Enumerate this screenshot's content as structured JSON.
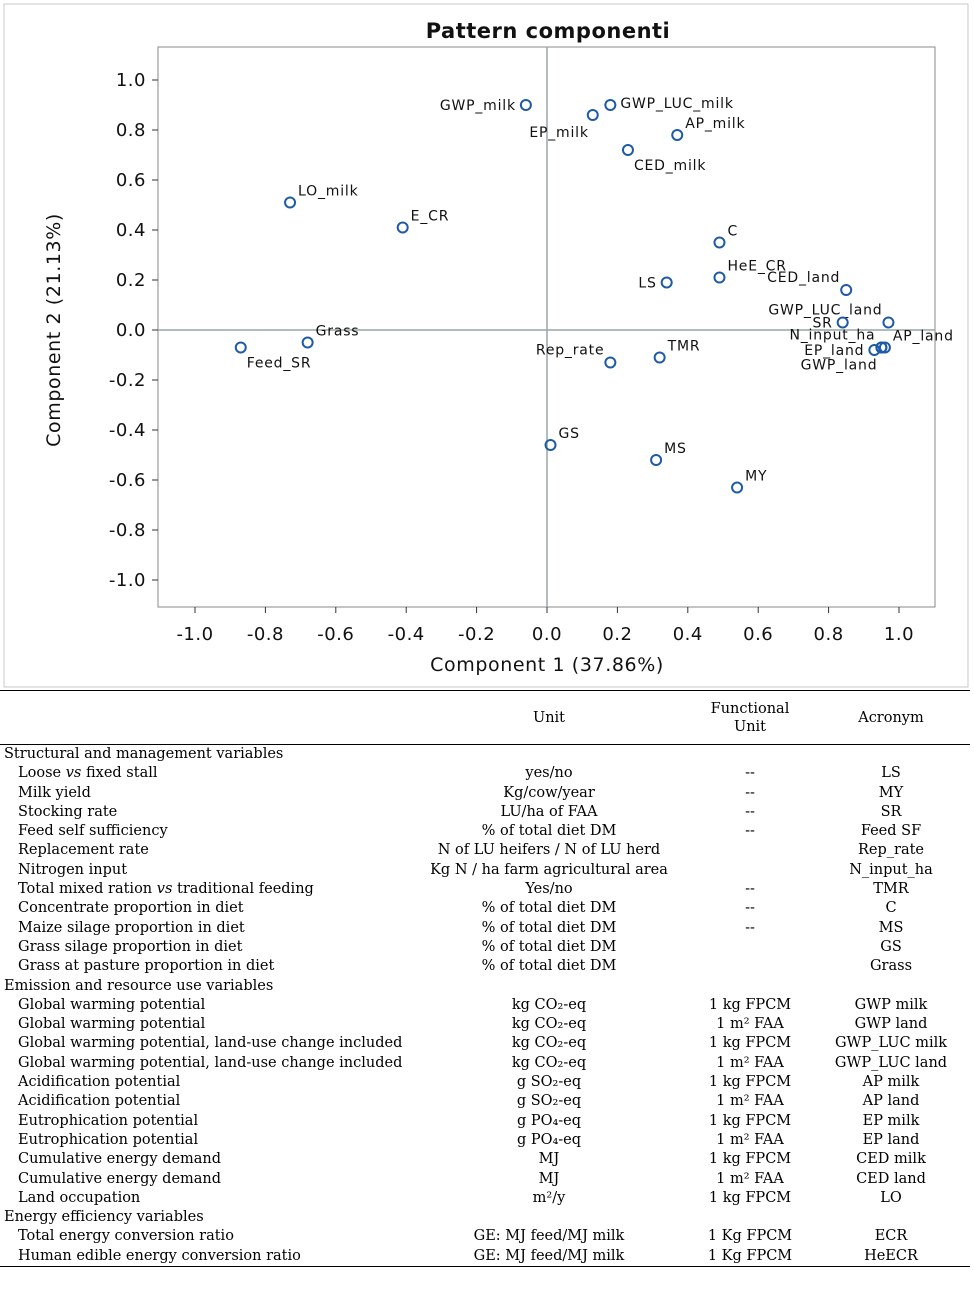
{
  "chart_data": {
    "type": "scatter",
    "title": "Pattern componenti",
    "xlabel": "Component   1 (37.86%)",
    "ylabel": "Component   2 (21.13%)",
    "xlim": [
      -1.1,
      1.1
    ],
    "ylim": [
      -1.1,
      1.1
    ],
    "xticks": [
      "-1.0",
      "-0.8",
      "-0.6",
      "-0.4",
      "-0.2",
      "0.0",
      "0.2",
      "0.4",
      "0.6",
      "0.8",
      "1.0"
    ],
    "yticks": [
      "1.0",
      "0.8",
      "0.6",
      "0.4",
      "0.2",
      "0.0",
      "-0.2",
      "-0.4",
      "-0.6",
      "-0.8",
      "-1.0"
    ],
    "reference_lines": {
      "x": 0,
      "y": 0
    },
    "marker": "open circle",
    "marker_color": "#1f5aa6",
    "points": [
      {
        "label": "GWP_milk",
        "x": -0.06,
        "y": 0.9,
        "label_side": "left"
      },
      {
        "label": "GWP_LUC_milk",
        "x": 0.18,
        "y": 0.9,
        "label_side": "right"
      },
      {
        "label": "EP_milk",
        "x": 0.13,
        "y": 0.86,
        "label_side": "below-left"
      },
      {
        "label": "AP_milk",
        "x": 0.37,
        "y": 0.78,
        "label_side": "above-right"
      },
      {
        "label": "CED_milk",
        "x": 0.23,
        "y": 0.72,
        "label_side": "below-right"
      },
      {
        "label": "LO_milk",
        "x": -0.73,
        "y": 0.51,
        "label_side": "above-right"
      },
      {
        "label": "E_CR",
        "x": -0.41,
        "y": 0.41,
        "label_side": "above-right"
      },
      {
        "label": "C",
        "x": 0.49,
        "y": 0.35,
        "label_side": "above-right"
      },
      {
        "label": "HeE_CR",
        "x": 0.49,
        "y": 0.21,
        "label_side": "above-right"
      },
      {
        "label": "CED_land",
        "x": 0.85,
        "y": 0.16,
        "label_side": "above-left"
      },
      {
        "label": "LS",
        "x": 0.34,
        "y": 0.19,
        "label_side": "left"
      },
      {
        "label": "GWP_LUC_land",
        "x": 0.97,
        "y": 0.03,
        "label_side": "above-left"
      },
      {
        "label": "SR",
        "x": 0.84,
        "y": 0.03,
        "label_side": "left"
      },
      {
        "label": "N_input_ha",
        "x": 0.95,
        "y": -0.07,
        "label_side": "above-left"
      },
      {
        "label": "AP_land",
        "x": 0.96,
        "y": -0.07,
        "label_side": "above-right"
      },
      {
        "label": "EP_land",
        "x": 0.93,
        "y": -0.08,
        "label_side": "left"
      },
      {
        "label": "GWP_land",
        "x": 0.95,
        "y": -0.07,
        "label_side": "below-left"
      },
      {
        "label": "Grass",
        "x": -0.68,
        "y": -0.05,
        "label_side": "above-right"
      },
      {
        "label": "Feed_SR",
        "x": -0.87,
        "y": -0.07,
        "label_side": "below-right"
      },
      {
        "label": "Rep_rate",
        "x": 0.18,
        "y": -0.13,
        "label_side": "above-left"
      },
      {
        "label": "TMR",
        "x": 0.32,
        "y": -0.11,
        "label_side": "above-right"
      },
      {
        "label": "GS",
        "x": 0.01,
        "y": -0.46,
        "label_side": "above-right"
      },
      {
        "label": "MS",
        "x": 0.31,
        "y": -0.52,
        "label_side": "above-right"
      },
      {
        "label": "MY",
        "x": 0.54,
        "y": -0.63,
        "label_side": "above-right"
      }
    ]
  },
  "table": {
    "headers": {
      "unit": "Unit",
      "functional_unit_line1": "Functional",
      "functional_unit_line2": "Unit",
      "acronym": "Acronym"
    },
    "sections": [
      {
        "title": "Structural and management variables",
        "rows": [
          {
            "var": "Loose vs fixed stall",
            "unit": "yes/no",
            "fu": "--",
            "acr": "LS"
          },
          {
            "var": "Milk yield",
            "unit": "Kg/cow/year",
            "fu": "--",
            "acr": "MY"
          },
          {
            "var": "Stocking rate",
            "unit": "LU/ha of FAA",
            "fu": "--",
            "acr": "SR"
          },
          {
            "var": "Feed self sufficiency",
            "unit": "% of total diet DM",
            "fu": "--",
            "acr": "Feed SF"
          },
          {
            "var": "Replacement rate",
            "unit": "N of LU heifers / N of LU herd",
            "fu": "",
            "acr": "Rep_rate"
          },
          {
            "var": "Nitrogen input",
            "unit": "Kg N / ha farm agricultural area",
            "fu": "",
            "acr": "N_input_ha"
          },
          {
            "var": "Total mixed ration vs traditional feeding",
            "unit": "Yes/no",
            "fu": "--",
            "acr": "TMR"
          },
          {
            "var": "Concentrate proportion in diet",
            "unit": "% of total diet DM",
            "fu": "--",
            "acr": "C"
          },
          {
            "var": "Maize silage proportion in diet",
            "unit": "% of total diet DM",
            "fu": "--",
            "acr": "MS"
          },
          {
            "var": "Grass silage proportion in diet",
            "unit": "% of total diet DM",
            "fu": "",
            "acr": "GS"
          },
          {
            "var": "Grass at pasture proportion in diet",
            "unit": "% of total diet DM",
            "fu": "",
            "acr": "Grass"
          }
        ]
      },
      {
        "title": "Emission and resource use variables",
        "rows": [
          {
            "var": "Global warming potential",
            "unit": "kg CO₂-eq",
            "fu": "1 kg FPCM",
            "acr": "GWP milk"
          },
          {
            "var": "Global warming potential",
            "unit": "kg CO₂-eq",
            "fu": "1 m² FAA",
            "acr": "GWP land"
          },
          {
            "var": "Global warming potential, land-use change included",
            "unit": "kg CO₂-eq",
            "fu": "1 kg FPCM",
            "acr": "GWP_LUC milk"
          },
          {
            "var": "Global warming potential, land-use change included",
            "unit": "kg CO₂-eq",
            "fu": "1 m² FAA",
            "acr": "GWP_LUC land"
          },
          {
            "var": "Acidification potential",
            "unit": "g SO₂-eq",
            "fu": "1 kg FPCM",
            "acr": "AP milk"
          },
          {
            "var": "Acidification potential",
            "unit": "g SO₂-eq",
            "fu": "1 m² FAA",
            "acr": "AP land"
          },
          {
            "var": "Eutrophication potential",
            "unit": "g PO₄-eq",
            "fu": "1 kg FPCM",
            "acr": "EP milk"
          },
          {
            "var": "Eutrophication potential",
            "unit": "g PO₄-eq",
            "fu": "1 m² FAA",
            "acr": "EP land"
          },
          {
            "var": "Cumulative energy demand",
            "unit": "MJ",
            "fu": "1 kg FPCM",
            "acr": "CED milk"
          },
          {
            "var": "Cumulative energy demand",
            "unit": "MJ",
            "fu": "1 m² FAA",
            "acr": "CED land"
          },
          {
            "var": "Land occupation",
            "unit": "m²/y",
            "fu": "1 kg FPCM",
            "acr": "LO"
          }
        ]
      },
      {
        "title": "Energy efficiency variables",
        "rows": [
          {
            "var": "Total energy conversion ratio",
            "unit": "GE: MJ feed/MJ milk",
            "fu": "1 Kg FPCM",
            "acr": "ECR"
          },
          {
            "var": "Human edible energy conversion ratio",
            "unit": "GE: MJ feed/MJ milk",
            "fu": "1 Kg FPCM",
            "acr": "HeECR"
          }
        ]
      }
    ]
  }
}
